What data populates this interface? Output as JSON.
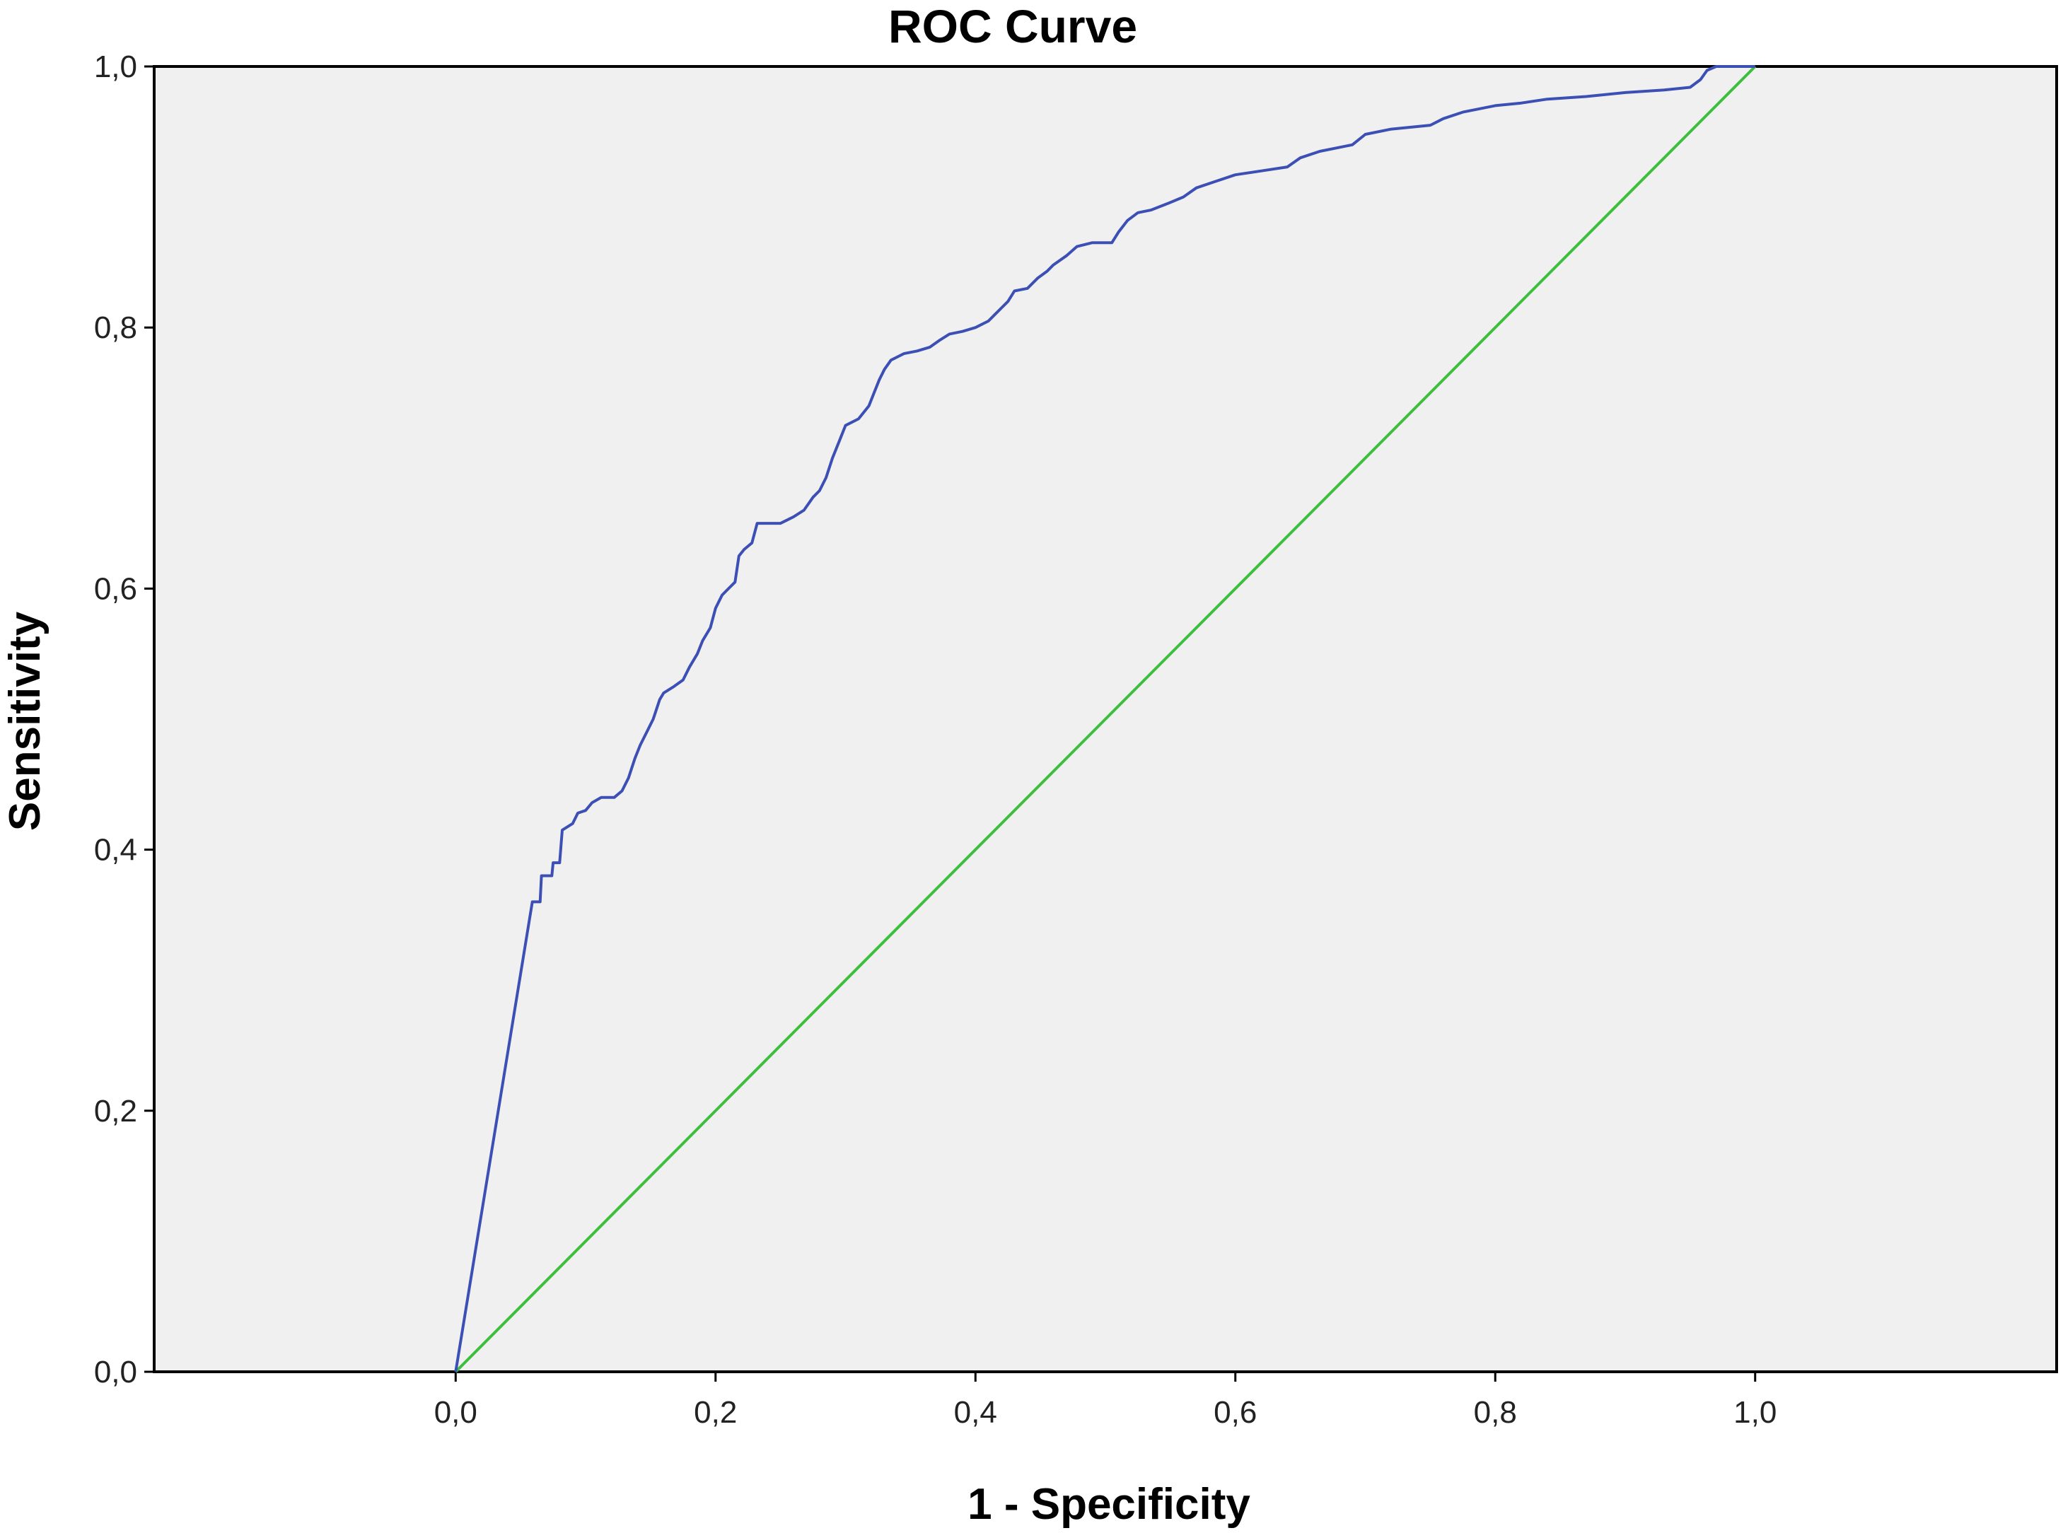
{
  "chart_data": {
    "type": "line",
    "title": "ROC Curve",
    "xlabel": "1 - Specificity",
    "ylabel": "Sensitivity",
    "xlim": [
      -0.232,
      1.232
    ],
    "ylim": [
      0,
      1
    ],
    "x_ticks": [
      "0,0",
      "0,2",
      "0,4",
      "0,6",
      "0,8",
      "1,0"
    ],
    "y_ticks": [
      "0,0",
      "0,2",
      "0,4",
      "0,6",
      "0,8",
      "1,0"
    ],
    "grid": false,
    "colors": {
      "plot_background": "#f0f0f0",
      "roc": "#3c4fb5",
      "reference": "#3dbf3d"
    },
    "series": [
      {
        "values": [
          [
            0.0,
            0.0
          ],
          [
            0.059,
            0.36
          ],
          [
            0.065,
            0.36
          ],
          [
            0.066,
            0.38
          ],
          [
            0.074,
            0.38
          ],
          [
            0.075,
            0.39
          ],
          [
            0.08,
            0.39
          ],
          [
            0.082,
            0.415
          ],
          [
            0.09,
            0.42
          ],
          [
            0.094,
            0.428
          ],
          [
            0.1,
            0.43
          ],
          [
            0.105,
            0.436
          ],
          [
            0.112,
            0.44
          ],
          [
            0.122,
            0.44
          ],
          [
            0.128,
            0.445
          ],
          [
            0.133,
            0.455
          ],
          [
            0.138,
            0.47
          ],
          [
            0.142,
            0.48
          ],
          [
            0.147,
            0.49
          ],
          [
            0.152,
            0.5
          ],
          [
            0.157,
            0.515
          ],
          [
            0.16,
            0.52
          ],
          [
            0.168,
            0.525
          ],
          [
            0.175,
            0.53
          ],
          [
            0.18,
            0.54
          ],
          [
            0.186,
            0.55
          ],
          [
            0.19,
            0.56
          ],
          [
            0.196,
            0.57
          ],
          [
            0.2,
            0.585
          ],
          [
            0.205,
            0.595
          ],
          [
            0.21,
            0.6
          ],
          [
            0.215,
            0.605
          ],
          [
            0.218,
            0.625
          ],
          [
            0.222,
            0.63
          ],
          [
            0.228,
            0.635
          ],
          [
            0.232,
            0.65
          ],
          [
            0.24,
            0.65
          ],
          [
            0.25,
            0.65
          ],
          [
            0.26,
            0.655
          ],
          [
            0.268,
            0.66
          ],
          [
            0.275,
            0.67
          ],
          [
            0.28,
            0.675
          ],
          [
            0.285,
            0.685
          ],
          [
            0.29,
            0.7
          ],
          [
            0.296,
            0.715
          ],
          [
            0.3,
            0.725
          ],
          [
            0.31,
            0.73
          ],
          [
            0.318,
            0.74
          ],
          [
            0.322,
            0.75
          ],
          [
            0.326,
            0.76
          ],
          [
            0.33,
            0.768
          ],
          [
            0.335,
            0.775
          ],
          [
            0.345,
            0.78
          ],
          [
            0.355,
            0.782
          ],
          [
            0.365,
            0.785
          ],
          [
            0.372,
            0.79
          ],
          [
            0.38,
            0.795
          ],
          [
            0.39,
            0.797
          ],
          [
            0.4,
            0.8
          ],
          [
            0.41,
            0.805
          ],
          [
            0.415,
            0.81
          ],
          [
            0.42,
            0.815
          ],
          [
            0.425,
            0.82
          ],
          [
            0.43,
            0.828
          ],
          [
            0.44,
            0.83
          ],
          [
            0.448,
            0.838
          ],
          [
            0.455,
            0.843
          ],
          [
            0.46,
            0.848
          ],
          [
            0.47,
            0.855
          ],
          [
            0.478,
            0.862
          ],
          [
            0.49,
            0.865
          ],
          [
            0.505,
            0.865
          ],
          [
            0.51,
            0.873
          ],
          [
            0.517,
            0.882
          ],
          [
            0.525,
            0.888
          ],
          [
            0.535,
            0.89
          ],
          [
            0.548,
            0.895
          ],
          [
            0.56,
            0.9
          ],
          [
            0.57,
            0.907
          ],
          [
            0.585,
            0.912
          ],
          [
            0.6,
            0.917
          ],
          [
            0.62,
            0.92
          ],
          [
            0.64,
            0.923
          ],
          [
            0.65,
            0.93
          ],
          [
            0.665,
            0.935
          ],
          [
            0.69,
            0.94
          ],
          [
            0.7,
            0.948
          ],
          [
            0.72,
            0.952
          ],
          [
            0.75,
            0.955
          ],
          [
            0.76,
            0.96
          ],
          [
            0.775,
            0.965
          ],
          [
            0.8,
            0.97
          ],
          [
            0.82,
            0.972
          ],
          [
            0.84,
            0.975
          ],
          [
            0.87,
            0.977
          ],
          [
            0.9,
            0.98
          ],
          [
            0.93,
            0.982
          ],
          [
            0.95,
            0.984
          ],
          [
            0.958,
            0.99
          ],
          [
            0.963,
            0.997
          ],
          [
            0.97,
            1.0
          ],
          [
            1.0,
            1.0
          ]
        ]
      },
      {
        "values": [
          [
            0.0,
            0.0
          ],
          [
            1.0,
            1.0
          ]
        ]
      }
    ]
  }
}
